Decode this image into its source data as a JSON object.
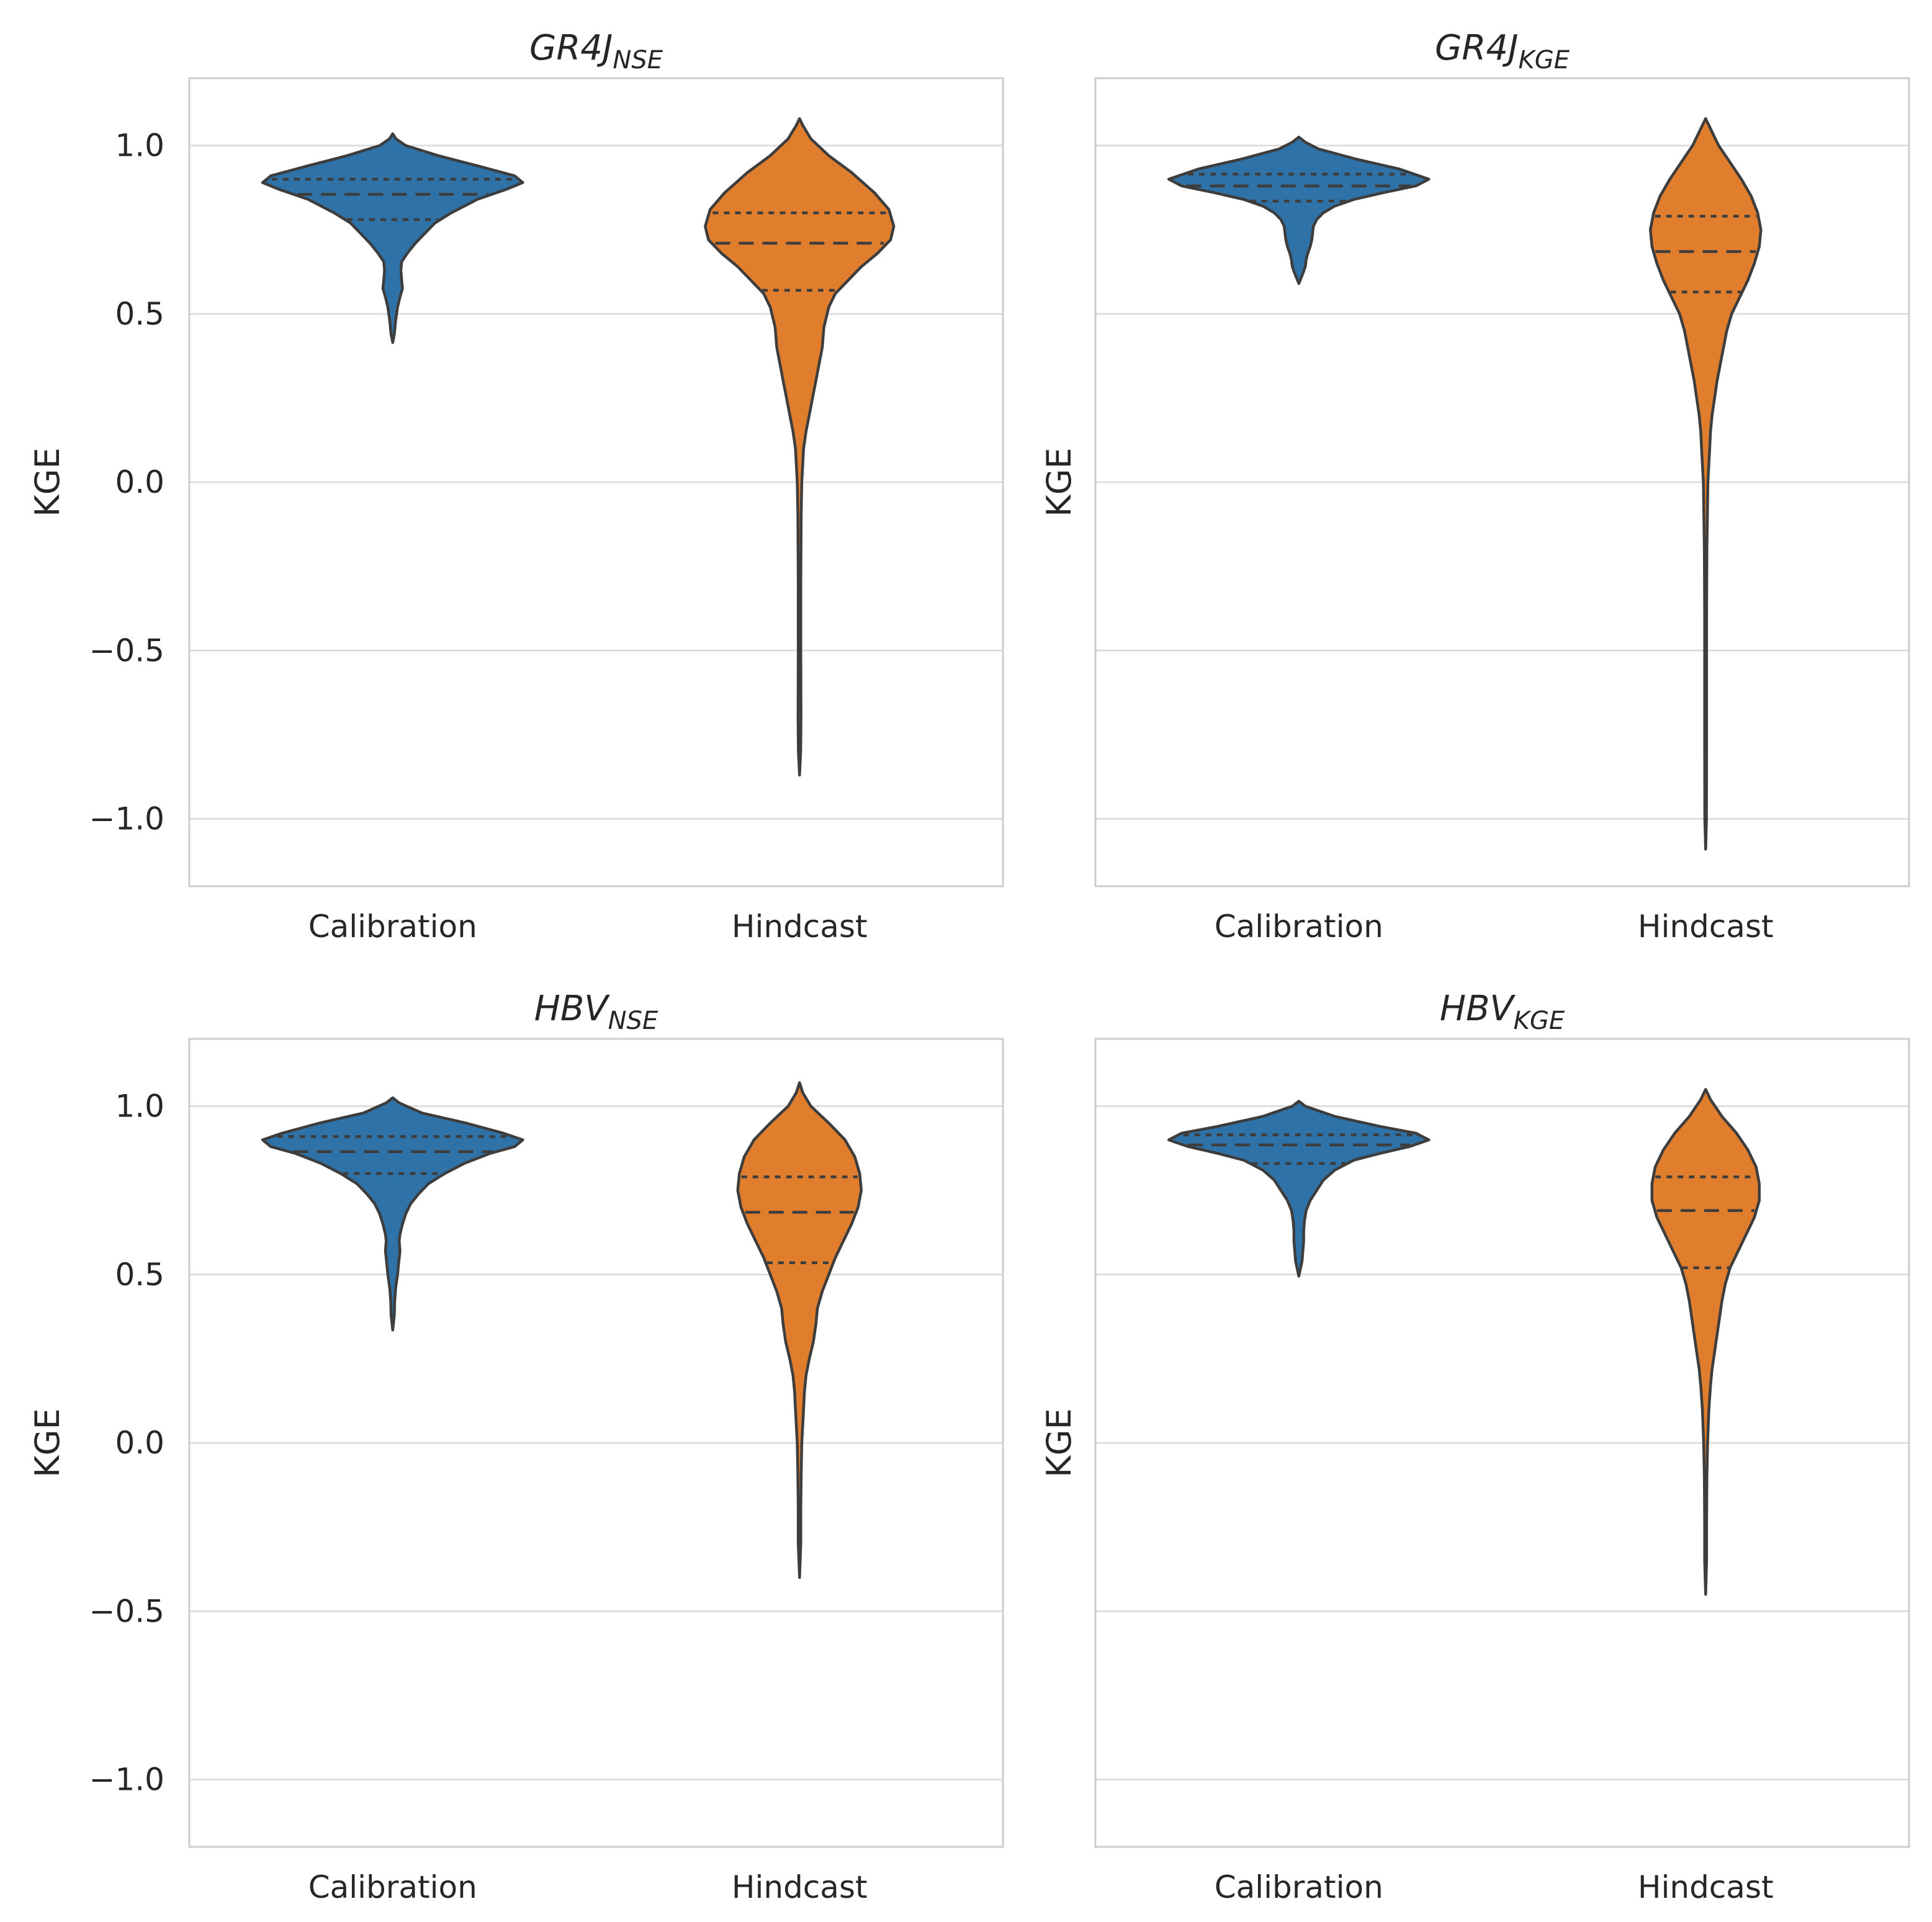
{
  "chart_data": [
    {
      "type": "violin",
      "title_main": "GR4J",
      "title_sub": "NSE",
      "ylabel": "KGE",
      "ylim": [
        -1.2,
        1.2
      ],
      "yticks": [
        "1.0",
        "0.5",
        "0.0",
        "−0.5",
        "−1.0"
      ],
      "show_ytick_labels": true,
      "categories": [
        "Calibration",
        "Hindcast"
      ],
      "violins": [
        {
          "category": "Calibration",
          "color": "#2f72a8",
          "q1": 0.78,
          "median": 0.855,
          "q3": 0.9,
          "profile": [
            [
              1.035,
              0
            ],
            [
              1.02,
              0.02
            ],
            [
              1.0,
              0.08
            ],
            [
              0.97,
              0.28
            ],
            [
              0.94,
              0.52
            ],
            [
              0.91,
              0.75
            ],
            [
              0.89,
              0.8
            ],
            [
              0.87,
              0.7
            ],
            [
              0.84,
              0.52
            ],
            [
              0.8,
              0.36
            ],
            [
              0.77,
              0.26
            ],
            [
              0.74,
              0.2
            ],
            [
              0.71,
              0.14
            ],
            [
              0.68,
              0.09
            ],
            [
              0.655,
              0.055
            ],
            [
              0.63,
              0.05
            ],
            [
              0.6,
              0.055
            ],
            [
              0.575,
              0.06
            ],
            [
              0.55,
              0.045
            ],
            [
              0.52,
              0.03
            ],
            [
              0.48,
              0.018
            ],
            [
              0.44,
              0.01
            ],
            [
              0.415,
              0
            ]
          ]
        },
        {
          "category": "Hindcast",
          "color": "#e07e2d",
          "q1": 0.57,
          "median": 0.71,
          "q3": 0.8,
          "profile": [
            [
              1.08,
              0
            ],
            [
              1.06,
              0.02
            ],
            [
              1.02,
              0.07
            ],
            [
              0.97,
              0.18
            ],
            [
              0.92,
              0.32
            ],
            [
              0.86,
              0.46
            ],
            [
              0.81,
              0.55
            ],
            [
              0.76,
              0.58
            ],
            [
              0.72,
              0.56
            ],
            [
              0.68,
              0.48
            ],
            [
              0.64,
              0.38
            ],
            [
              0.6,
              0.3
            ],
            [
              0.56,
              0.22
            ],
            [
              0.52,
              0.18
            ],
            [
              0.46,
              0.15
            ],
            [
              0.4,
              0.14
            ],
            [
              0.35,
              0.12
            ],
            [
              0.3,
              0.1
            ],
            [
              0.25,
              0.08
            ],
            [
              0.2,
              0.06
            ],
            [
              0.15,
              0.04
            ],
            [
              0.1,
              0.025
            ],
            [
              0.0,
              0.014
            ],
            [
              -0.1,
              0.01
            ],
            [
              -0.3,
              0.008
            ],
            [
              -0.5,
              0.008
            ],
            [
              -0.7,
              0.009
            ],
            [
              -0.8,
              0.007
            ],
            [
              -0.87,
              0
            ]
          ]
        }
      ]
    },
    {
      "type": "violin",
      "title_main": "GR4J",
      "title_sub": "KGE",
      "ylabel": "KGE",
      "ylim": [
        -1.2,
        1.2
      ],
      "yticks": [
        "1.0",
        "0.5",
        "0.0",
        "−0.5",
        "−1.0"
      ],
      "show_ytick_labels": false,
      "categories": [
        "Calibration",
        "Hindcast"
      ],
      "violins": [
        {
          "category": "Calibration",
          "color": "#2f72a8",
          "q1": 0.835,
          "median": 0.88,
          "q3": 0.915,
          "profile": [
            [
              1.025,
              0
            ],
            [
              1.01,
              0.04
            ],
            [
              0.99,
              0.12
            ],
            [
              0.96,
              0.35
            ],
            [
              0.93,
              0.62
            ],
            [
              0.9,
              0.8
            ],
            [
              0.88,
              0.72
            ],
            [
              0.86,
              0.52
            ],
            [
              0.84,
              0.34
            ],
            [
              0.82,
              0.22
            ],
            [
              0.8,
              0.15
            ],
            [
              0.78,
              0.11
            ],
            [
              0.76,
              0.09
            ],
            [
              0.74,
              0.085
            ],
            [
              0.72,
              0.08
            ],
            [
              0.7,
              0.07
            ],
            [
              0.68,
              0.055
            ],
            [
              0.66,
              0.045
            ],
            [
              0.64,
              0.04
            ],
            [
              0.62,
              0.025
            ],
            [
              0.59,
              0
            ]
          ]
        },
        {
          "category": "Hindcast",
          "color": "#e07e2d",
          "q1": 0.565,
          "median": 0.685,
          "q3": 0.79,
          "profile": [
            [
              1.08,
              0
            ],
            [
              1.05,
              0.03
            ],
            [
              1.0,
              0.08
            ],
            [
              0.95,
              0.15
            ],
            [
              0.9,
              0.22
            ],
            [
              0.85,
              0.28
            ],
            [
              0.8,
              0.32
            ],
            [
              0.75,
              0.34
            ],
            [
              0.7,
              0.33
            ],
            [
              0.65,
              0.3
            ],
            [
              0.6,
              0.26
            ],
            [
              0.55,
              0.21
            ],
            [
              0.5,
              0.16
            ],
            [
              0.45,
              0.13
            ],
            [
              0.4,
              0.11
            ],
            [
              0.35,
              0.09
            ],
            [
              0.3,
              0.07
            ],
            [
              0.25,
              0.055
            ],
            [
              0.2,
              0.04
            ],
            [
              0.15,
              0.03
            ],
            [
              0.1,
              0.025
            ],
            [
              0.0,
              0.014
            ],
            [
              -0.2,
              0.008
            ],
            [
              -0.4,
              0.006
            ],
            [
              -0.6,
              0.006
            ],
            [
              -0.8,
              0.006
            ],
            [
              -1.0,
              0.005
            ],
            [
              -1.09,
              0
            ]
          ]
        }
      ]
    },
    {
      "type": "violin",
      "title_main": "HBV",
      "title_sub": "NSE",
      "ylabel": "KGE",
      "ylim": [
        -1.2,
        1.2
      ],
      "yticks": [
        "1.0",
        "0.5",
        "0.0",
        "−0.5",
        "−1.0"
      ],
      "show_ytick_labels": true,
      "categories": [
        "Calibration",
        "Hindcast"
      ],
      "violins": [
        {
          "category": "Calibration",
          "color": "#2f72a8",
          "q1": 0.8,
          "median": 0.865,
          "q3": 0.91,
          "profile": [
            [
              1.025,
              0
            ],
            [
              1.01,
              0.04
            ],
            [
              0.98,
              0.18
            ],
            [
              0.95,
              0.45
            ],
            [
              0.92,
              0.68
            ],
            [
              0.9,
              0.8
            ],
            [
              0.88,
              0.75
            ],
            [
              0.86,
              0.6
            ],
            [
              0.83,
              0.44
            ],
            [
              0.8,
              0.32
            ],
            [
              0.77,
              0.22
            ],
            [
              0.74,
              0.16
            ],
            [
              0.71,
              0.11
            ],
            [
              0.68,
              0.08
            ],
            [
              0.65,
              0.06
            ],
            [
              0.62,
              0.045
            ],
            [
              0.6,
              0.04
            ],
            [
              0.57,
              0.045
            ],
            [
              0.54,
              0.038
            ],
            [
              0.5,
              0.03
            ],
            [
              0.46,
              0.018
            ],
            [
              0.42,
              0.012
            ],
            [
              0.38,
              0.01
            ],
            [
              0.335,
              0
            ]
          ]
        },
        {
          "category": "Hindcast",
          "color": "#e07e2d",
          "q1": 0.535,
          "median": 0.685,
          "q3": 0.79,
          "profile": [
            [
              1.07,
              0
            ],
            [
              1.04,
              0.02
            ],
            [
              1.0,
              0.07
            ],
            [
              0.95,
              0.18
            ],
            [
              0.9,
              0.28
            ],
            [
              0.85,
              0.34
            ],
            [
              0.8,
              0.37
            ],
            [
              0.75,
              0.38
            ],
            [
              0.7,
              0.36
            ],
            [
              0.65,
              0.32
            ],
            [
              0.6,
              0.27
            ],
            [
              0.55,
              0.22
            ],
            [
              0.5,
              0.18
            ],
            [
              0.45,
              0.14
            ],
            [
              0.4,
              0.11
            ],
            [
              0.35,
              0.1
            ],
            [
              0.3,
              0.085
            ],
            [
              0.25,
              0.06
            ],
            [
              0.2,
              0.04
            ],
            [
              0.15,
              0.03
            ],
            [
              0.1,
              0.025
            ],
            [
              0.0,
              0.014
            ],
            [
              -0.1,
              0.01
            ],
            [
              -0.2,
              0.008
            ],
            [
              -0.3,
              0.008
            ],
            [
              -0.4,
              0
            ]
          ]
        }
      ]
    },
    {
      "type": "violin",
      "title_main": "HBV",
      "title_sub": "KGE",
      "ylabel": "KGE",
      "ylim": [
        -1.2,
        1.2
      ],
      "yticks": [
        "1.0",
        "0.5",
        "0.0",
        "−0.5",
        "−1.0"
      ],
      "show_ytick_labels": false,
      "categories": [
        "Calibration",
        "Hindcast"
      ],
      "violins": [
        {
          "category": "Calibration",
          "color": "#2f72a8",
          "q1": 0.83,
          "median": 0.885,
          "q3": 0.915,
          "profile": [
            [
              1.015,
              0
            ],
            [
              1.0,
              0.04
            ],
            [
              0.97,
              0.22
            ],
            [
              0.94,
              0.5
            ],
            [
              0.92,
              0.72
            ],
            [
              0.9,
              0.8
            ],
            [
              0.88,
              0.68
            ],
            [
              0.86,
              0.5
            ],
            [
              0.84,
              0.34
            ],
            [
              0.81,
              0.22
            ],
            [
              0.78,
              0.15
            ],
            [
              0.75,
              0.11
            ],
            [
              0.72,
              0.07
            ],
            [
              0.69,
              0.045
            ],
            [
              0.66,
              0.035
            ],
            [
              0.63,
              0.03
            ],
            [
              0.6,
              0.03
            ],
            [
              0.57,
              0.025
            ],
            [
              0.54,
              0.02
            ],
            [
              0.495,
              0
            ]
          ]
        },
        {
          "category": "Hindcast",
          "color": "#e07e2d",
          "q1": 0.52,
          "median": 0.69,
          "q3": 0.79,
          "profile": [
            [
              1.05,
              0
            ],
            [
              1.02,
              0.03
            ],
            [
              0.97,
              0.1
            ],
            [
              0.92,
              0.19
            ],
            [
              0.87,
              0.26
            ],
            [
              0.82,
              0.31
            ],
            [
              0.77,
              0.33
            ],
            [
              0.72,
              0.33
            ],
            [
              0.67,
              0.3
            ],
            [
              0.62,
              0.25
            ],
            [
              0.57,
              0.2
            ],
            [
              0.52,
              0.15
            ],
            [
              0.47,
              0.12
            ],
            [
              0.42,
              0.1
            ],
            [
              0.37,
              0.085
            ],
            [
              0.32,
              0.07
            ],
            [
              0.27,
              0.055
            ],
            [
              0.22,
              0.04
            ],
            [
              0.17,
              0.03
            ],
            [
              0.1,
              0.02
            ],
            [
              0.0,
              0.012
            ],
            [
              -0.1,
              0.008
            ],
            [
              -0.25,
              0.006
            ],
            [
              -0.35,
              0.006
            ],
            [
              -0.45,
              0
            ]
          ]
        }
      ]
    }
  ]
}
